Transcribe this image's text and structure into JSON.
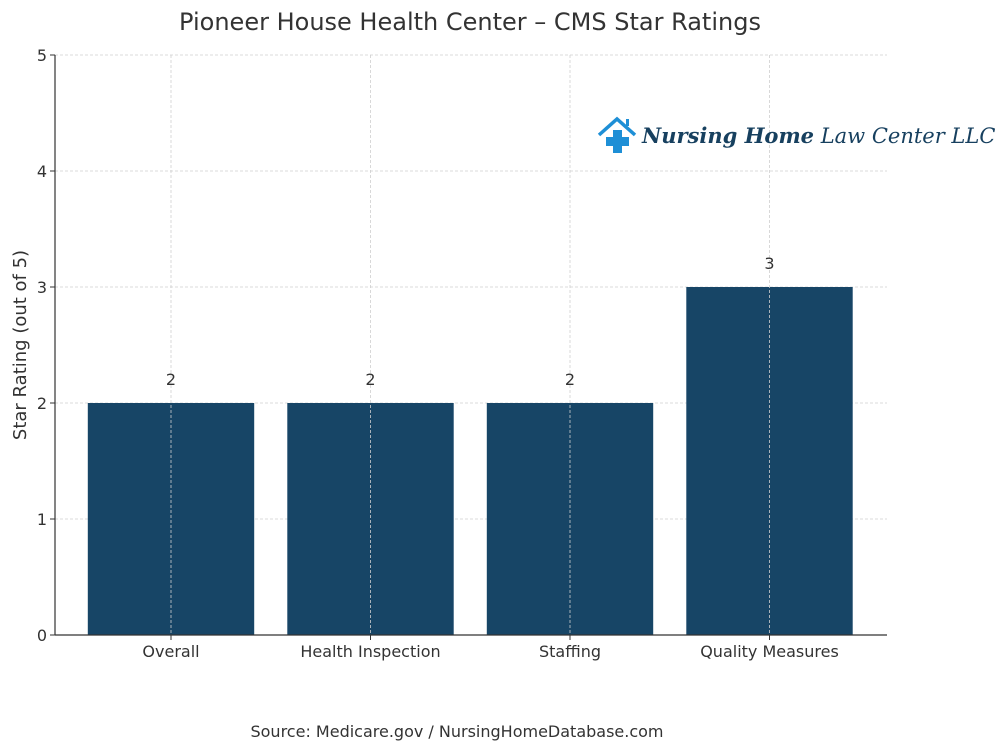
{
  "chart_data": {
    "type": "bar",
    "title": "Pioneer House Health Center – CMS Star Ratings",
    "xlabel": "",
    "ylabel": "Star Rating (out of 5)",
    "categories": [
      "Overall",
      "Health Inspection",
      "Staffing",
      "Quality Measures"
    ],
    "values": [
      2,
      2,
      2,
      3
    ],
    "data_labels": [
      "2",
      "2",
      "2",
      "3"
    ],
    "ylim": [
      0,
      5
    ],
    "yticks": [
      "0",
      "1",
      "2",
      "3",
      "4",
      "5"
    ],
    "grid": true,
    "bar_color": "#174566",
    "source": "Source: Medicare.gov / NursingHomeDatabase.com"
  },
  "logo": {
    "bold_text": "Nursing Home",
    "regular_text": "Law Center LLC",
    "color": "#17405f",
    "icon_color": "#1e8fd6"
  }
}
